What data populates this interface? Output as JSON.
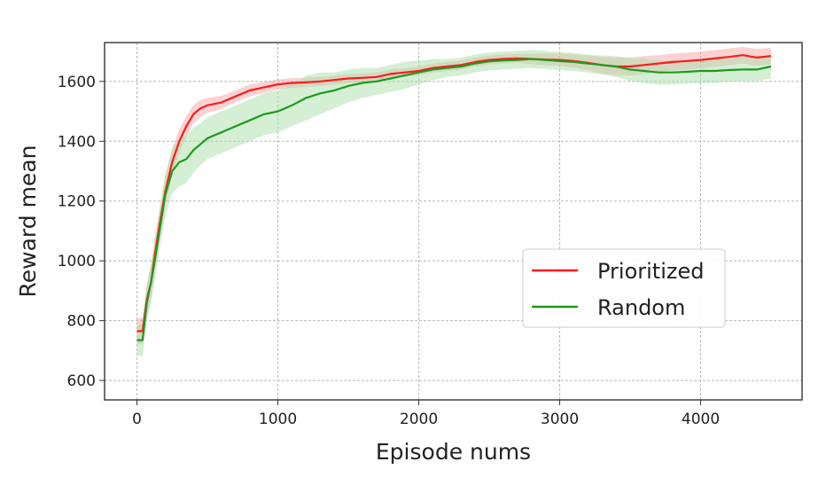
{
  "chart_data": {
    "type": "line",
    "title": "",
    "xlabel": "Episode nums",
    "ylabel": "Reward mean",
    "xlim": [
      -230,
      4720
    ],
    "ylim": [
      535,
      1730
    ],
    "xticks": [
      0,
      1000,
      2000,
      3000,
      4000
    ],
    "yticks": [
      600,
      800,
      1000,
      1200,
      1400,
      1600
    ],
    "grid": true,
    "legend_position": "lower-right",
    "series": [
      {
        "name": "Prioritized",
        "color": "#ff1a1a",
        "band_color": "#f6a5a5",
        "x": [
          0,
          40,
          70,
          100,
          130,
          160,
          200,
          250,
          300,
          350,
          400,
          450,
          500,
          600,
          700,
          800,
          900,
          1000,
          1100,
          1200,
          1300,
          1400,
          1500,
          1600,
          1700,
          1800,
          1900,
          2000,
          2100,
          2200,
          2300,
          2400,
          2500,
          2600,
          2700,
          2800,
          2900,
          3000,
          3100,
          3200,
          3300,
          3400,
          3500,
          3600,
          3700,
          3800,
          3900,
          4000,
          4100,
          4200,
          4300,
          4400,
          4500
        ],
        "values": [
          765,
          765,
          870,
          930,
          1030,
          1120,
          1230,
          1330,
          1400,
          1450,
          1490,
          1510,
          1520,
          1530,
          1550,
          1570,
          1580,
          1590,
          1595,
          1597,
          1600,
          1605,
          1610,
          1612,
          1615,
          1625,
          1630,
          1635,
          1645,
          1650,
          1655,
          1665,
          1672,
          1675,
          1677,
          1675,
          1673,
          1672,
          1668,
          1662,
          1655,
          1650,
          1650,
          1655,
          1660,
          1665,
          1668,
          1672,
          1677,
          1682,
          1688,
          1680,
          1685
        ],
        "band": [
          42,
          45,
          55,
          60,
          58,
          55,
          50,
          45,
          40,
          35,
          30,
          28,
          25,
          22,
          20,
          20,
          18,
          17,
          16,
          15,
          15,
          15,
          15,
          15,
          15,
          15,
          15,
          15,
          15,
          15,
          15,
          15,
          15,
          15,
          15,
          18,
          20,
          20,
          22,
          25,
          28,
          30,
          30,
          30,
          28,
          28,
          28,
          28,
          28,
          28,
          28,
          28,
          28
        ]
      },
      {
        "name": "Random",
        "color": "#1e9a1e",
        "band_color": "#a9e0a9",
        "x": [
          0,
          40,
          70,
          100,
          130,
          160,
          200,
          250,
          300,
          350,
          400,
          450,
          500,
          600,
          700,
          800,
          900,
          1000,
          1100,
          1200,
          1300,
          1400,
          1500,
          1600,
          1700,
          1800,
          1900,
          2000,
          2100,
          2200,
          2300,
          2400,
          2500,
          2600,
          2700,
          2800,
          2900,
          3000,
          3100,
          3200,
          3300,
          3400,
          3500,
          3600,
          3700,
          3800,
          3900,
          4000,
          4100,
          4200,
          4300,
          4400,
          4500
        ],
        "values": [
          735,
          735,
          860,
          930,
          1010,
          1100,
          1220,
          1300,
          1330,
          1340,
          1370,
          1390,
          1410,
          1430,
          1450,
          1470,
          1490,
          1500,
          1520,
          1545,
          1560,
          1570,
          1585,
          1595,
          1600,
          1610,
          1620,
          1630,
          1640,
          1645,
          1650,
          1660,
          1667,
          1670,
          1672,
          1675,
          1672,
          1668,
          1665,
          1660,
          1655,
          1650,
          1640,
          1635,
          1630,
          1630,
          1632,
          1635,
          1635,
          1638,
          1640,
          1640,
          1650
        ],
        "band": [
          50,
          55,
          60,
          65,
          65,
          65,
          70,
          75,
          80,
          80,
          75,
          70,
          70,
          70,
          70,
          70,
          70,
          70,
          70,
          75,
          70,
          60,
          55,
          50,
          45,
          45,
          45,
          40,
          35,
          30,
          30,
          30,
          30,
          30,
          30,
          30,
          30,
          30,
          30,
          30,
          32,
          35,
          38,
          40,
          40,
          40,
          40,
          40,
          40,
          40,
          40,
          40,
          40
        ]
      }
    ]
  }
}
